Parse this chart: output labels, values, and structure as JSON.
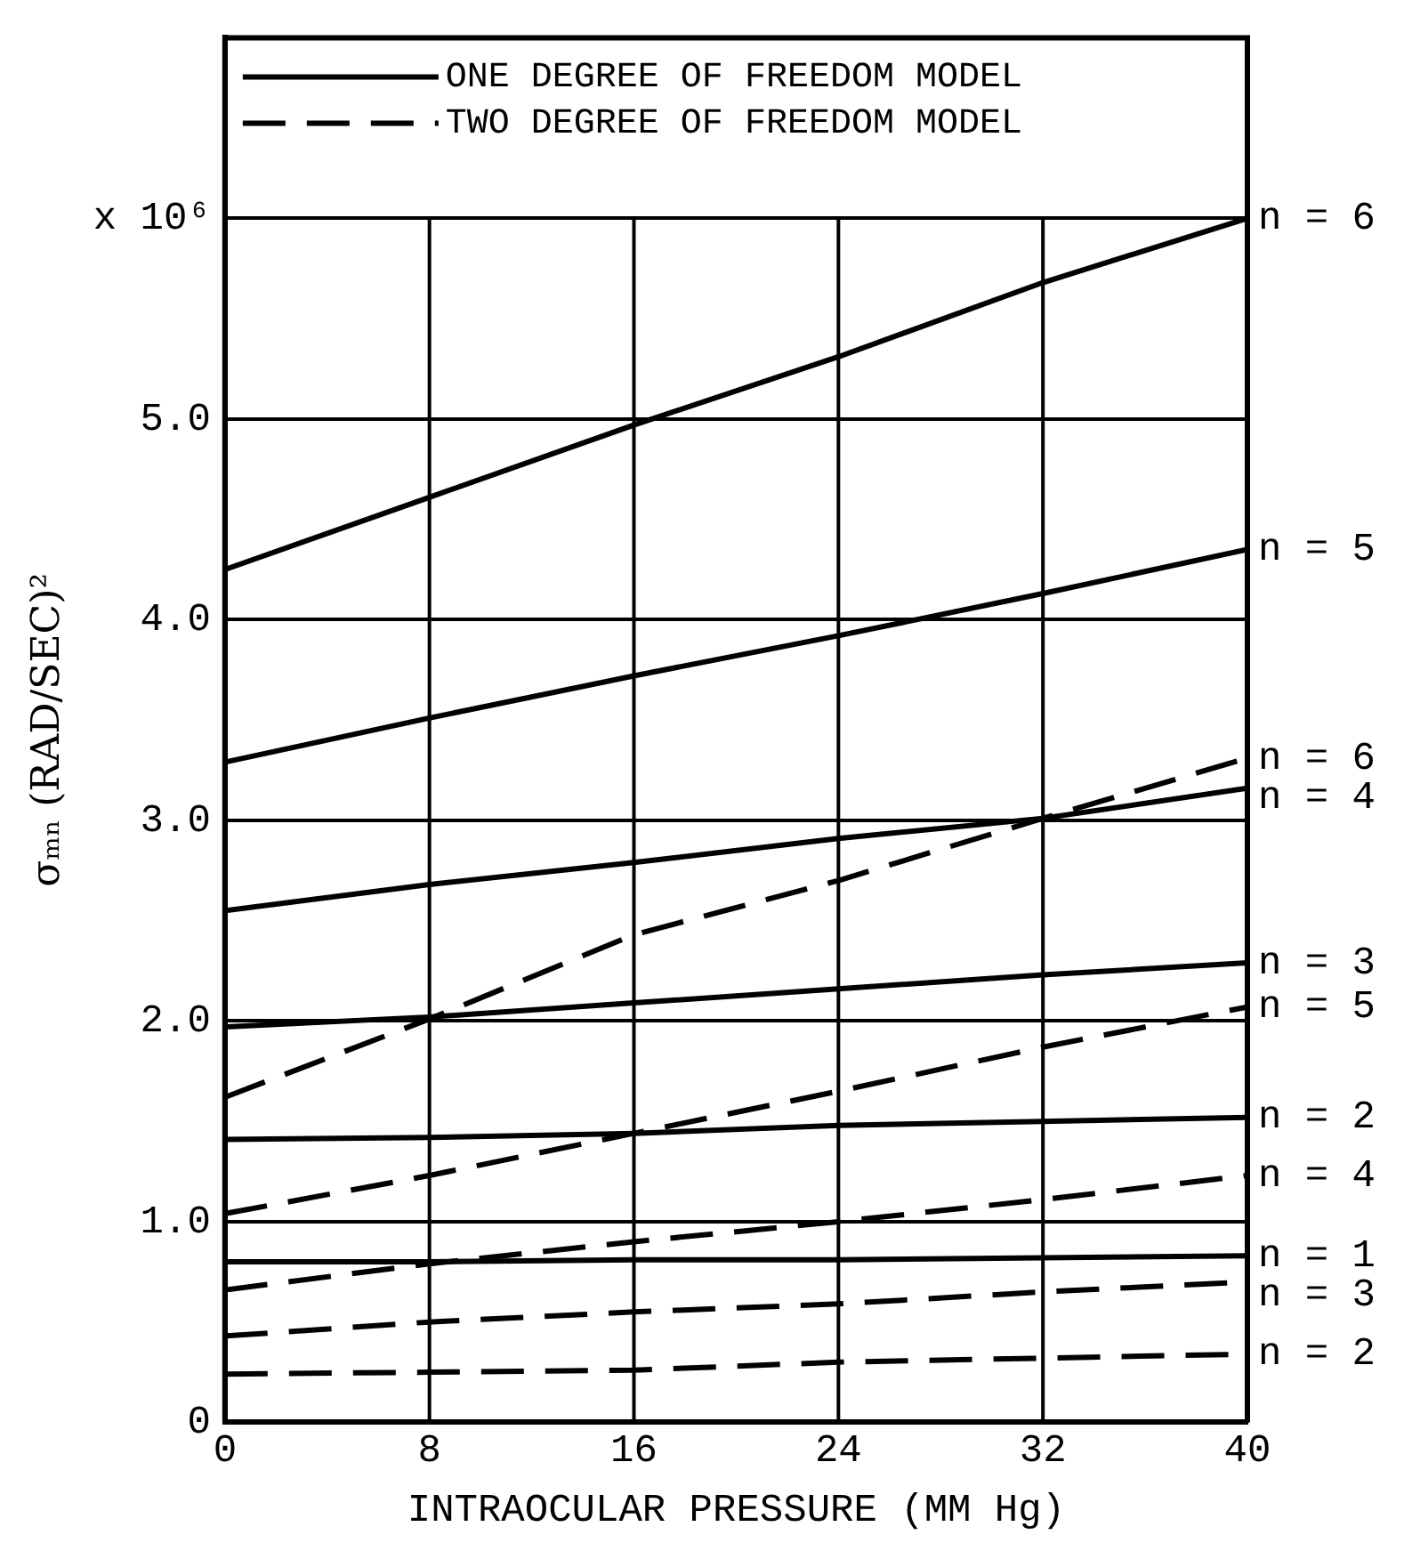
{
  "chart_data": {
    "type": "line",
    "xlabel": "INTRAOCULAR PRESSURE (MM Hg)",
    "ylabel": "σₘₙ (RAD/SEC)²",
    "x": [
      0,
      8,
      16,
      24,
      32,
      40
    ],
    "xlim": [
      0,
      40
    ],
    "xticks": [
      0,
      8,
      16,
      24,
      32,
      40
    ],
    "ylim": [
      0,
      6.9
    ],
    "yticks": [
      0,
      {
        "value": 1,
        "label": "1.0"
      },
      {
        "value": 2,
        "label": "2.0"
      },
      {
        "value": 3,
        "label": "3.0"
      },
      {
        "value": 4,
        "label": "4.0"
      },
      {
        "value": 5,
        "label": "5.0"
      },
      {
        "value": 6,
        "label": "x 10⁶"
      }
    ],
    "grid": true,
    "marker": "none",
    "annotations": [
      "ONE DEGREE OF FREEDOM MODEL",
      "TWO DEGREE OF FREEDOM MODEL"
    ],
    "series": [
      {
        "name": "n = 6",
        "color": "#000000",
        "line_style": "solid",
        "values": [
          4.25,
          4.61,
          4.97,
          5.31,
          5.68,
          6.0
        ]
      },
      {
        "name": "n = 5",
        "color": "#000000",
        "line_style": "solid",
        "values": [
          3.29,
          3.51,
          3.72,
          3.92,
          4.13,
          4.35
        ]
      },
      {
        "name": "n = 4",
        "color": "#000000",
        "line_style": "solid",
        "values": [
          2.55,
          2.68,
          2.79,
          2.91,
          3.01,
          3.16
        ]
      },
      {
        "name": "n = 3",
        "color": "#000000",
        "line_style": "solid",
        "values": [
          1.97,
          2.02,
          2.09,
          2.16,
          2.23,
          2.29
        ]
      },
      {
        "name": "n = 2",
        "color": "#000000",
        "line_style": "solid",
        "values": [
          1.41,
          1.42,
          1.44,
          1.48,
          1.5,
          1.52
        ]
      },
      {
        "name": "n = 1",
        "color": "#000000",
        "line_style": "solid",
        "values": [
          0.8,
          0.8,
          0.81,
          0.81,
          0.82,
          0.83
        ]
      },
      {
        "name": "n = 6",
        "color": "#000000",
        "line_style": "dashed",
        "values": [
          1.62,
          2.01,
          2.43,
          2.7,
          3.01,
          3.31
        ]
      },
      {
        "name": "n = 5",
        "color": "#000000",
        "line_style": "dashed",
        "values": [
          1.04,
          1.23,
          1.44,
          1.65,
          1.87,
          2.07
        ]
      },
      {
        "name": "n = 4",
        "color": "#000000",
        "line_style": "dashed",
        "values": [
          0.66,
          0.79,
          0.9,
          1.0,
          1.11,
          1.23
        ]
      },
      {
        "name": "n = 3",
        "color": "#000000",
        "line_style": "dashed",
        "values": [
          0.43,
          0.5,
          0.55,
          0.59,
          0.65,
          0.7
        ]
      },
      {
        "name": "n = 2",
        "color": "#000000",
        "line_style": "dashed",
        "values": [
          0.24,
          0.25,
          0.26,
          0.3,
          0.32,
          0.34
        ]
      }
    ]
  }
}
